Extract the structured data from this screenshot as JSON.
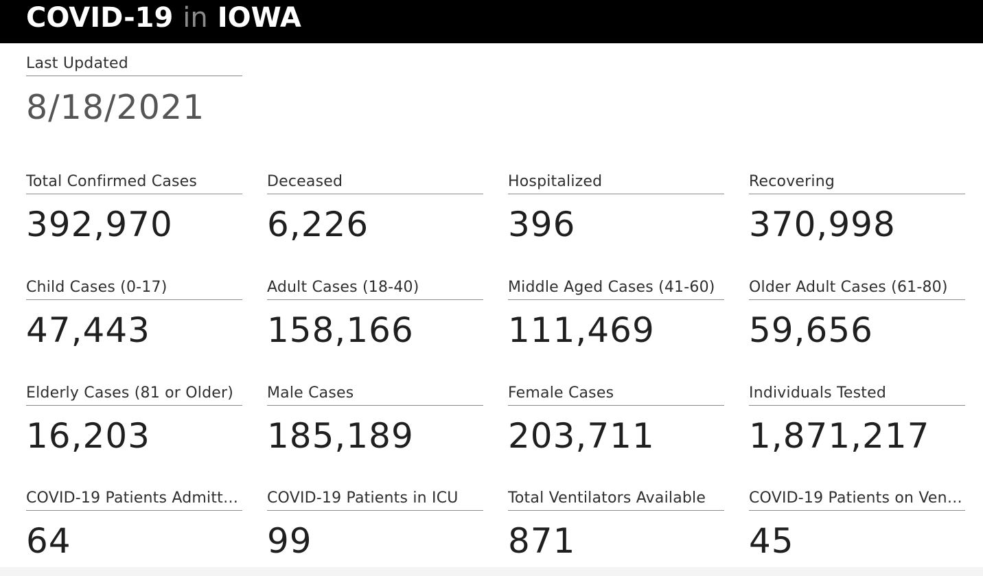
{
  "header": {
    "title_part1": "COVID-19",
    "title_in": "in",
    "title_part2": "IOWA"
  },
  "last_updated": {
    "label": "Last Updated",
    "value": "8/18/2021"
  },
  "tiles": [
    {
      "label": "Total Confirmed Cases",
      "value": "392,970"
    },
    {
      "label": "Deceased",
      "value": "6,226"
    },
    {
      "label": "Hospitalized",
      "value": "396"
    },
    {
      "label": "Recovering",
      "value": "370,998"
    },
    {
      "label": "Child Cases (0-17)",
      "value": "47,443"
    },
    {
      "label": "Adult Cases (18-40)",
      "value": "158,166"
    },
    {
      "label": "Middle Aged Cases (41-60)",
      "value": "111,469"
    },
    {
      "label": "Older Adult Cases (61-80)",
      "value": "59,656"
    },
    {
      "label": "Elderly Cases (81 or Older)",
      "value": "16,203"
    },
    {
      "label": "Male Cases",
      "value": "185,189"
    },
    {
      "label": "Female Cases",
      "value": "203,711"
    },
    {
      "label": "Individuals Tested",
      "value": "1,871,217"
    },
    {
      "label": "COVID-19 Patients Admitte...",
      "value": "64"
    },
    {
      "label": "COVID-19 Patients in ICU",
      "value": "99"
    },
    {
      "label": "Total Ventilators Available",
      "value": "871"
    },
    {
      "label": "COVID-19 Patients on Vent...",
      "value": "45"
    }
  ]
}
